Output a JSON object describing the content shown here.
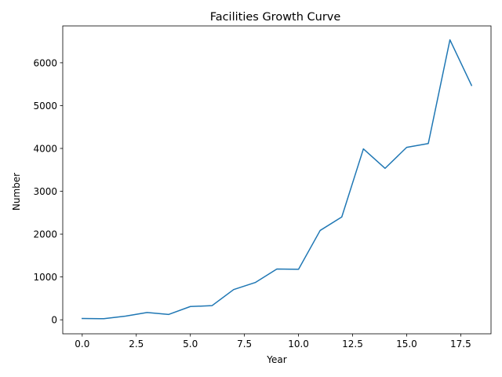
{
  "chart_data": {
    "type": "line",
    "title": "Facilities Growth Curve",
    "xlabel": "Year",
    "ylabel": "Number",
    "x": [
      0,
      1,
      2,
      3,
      4,
      5,
      6,
      7,
      8,
      9,
      10,
      11,
      12,
      13,
      14,
      15,
      16,
      17,
      18
    ],
    "series": [
      {
        "values": [
          30,
          25,
          85,
          170,
          125,
          310,
          330,
          705,
          870,
          1185,
          1178,
          2085,
          2400,
          3990,
          3535,
          4025,
          4115,
          6535,
          5470
        ],
        "color": "#1f77b4"
      }
    ],
    "xlim": [
      -0.9,
      18.9
    ],
    "ylim": [
      -327,
      6860
    ],
    "xticks": [
      0.0,
      2.5,
      5.0,
      7.5,
      10.0,
      12.5,
      15.0,
      17.5
    ],
    "xtick_labels": [
      "0.0",
      "2.5",
      "5.0",
      "7.5",
      "10.0",
      "12.5",
      "15.0",
      "17.5"
    ],
    "yticks": [
      0,
      1000,
      2000,
      3000,
      4000,
      5000,
      6000
    ],
    "ytick_labels": [
      "0",
      "1000",
      "2000",
      "3000",
      "4000",
      "5000",
      "6000"
    ],
    "grid": false,
    "legend": "none"
  }
}
